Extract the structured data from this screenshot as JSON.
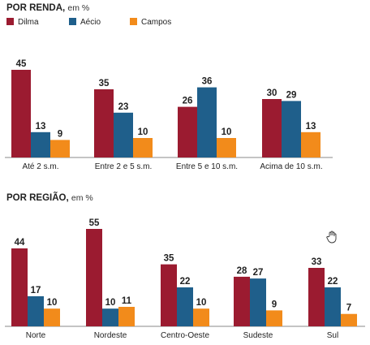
{
  "colors": {
    "Dilma": "#9b1b30",
    "Aécio": "#1f5f8b",
    "Campos": "#f28b1b"
  },
  "legend": [
    "Dilma",
    "Aécio",
    "Campos"
  ],
  "icons": {
    "cursor": "hand-cursor-icon"
  },
  "chart_data": [
    {
      "type": "bar",
      "title": "POR RENDA,",
      "subtitle": "em %",
      "categories": [
        "Até 2 s.m.",
        "Entre 2 e 5 s.m.",
        "Entre 5 e 10 s.m.",
        "Acima de 10 s.m."
      ],
      "series": [
        {
          "name": "Dilma",
          "values": [
            45,
            35,
            26,
            30
          ]
        },
        {
          "name": "Aécio",
          "values": [
            13,
            23,
            36,
            29
          ]
        },
        {
          "name": "Campos",
          "values": [
            9,
            10,
            10,
            13
          ]
        }
      ],
      "ylim": [
        0,
        45
      ],
      "grid": false,
      "legend_position": "top-left"
    },
    {
      "type": "bar",
      "title": "POR REGIÃO,",
      "subtitle": "em %",
      "categories": [
        "Norte",
        "Nordeste",
        "Centro-Oeste",
        "Sudeste",
        "Sul"
      ],
      "series": [
        {
          "name": "Dilma",
          "values": [
            44,
            55,
            35,
            28,
            33
          ]
        },
        {
          "name": "Aécio",
          "values": [
            17,
            10,
            22,
            27,
            22
          ]
        },
        {
          "name": "Campos",
          "values": [
            10,
            11,
            10,
            9,
            7
          ]
        }
      ],
      "ylim": [
        0,
        55
      ],
      "grid": false
    }
  ]
}
